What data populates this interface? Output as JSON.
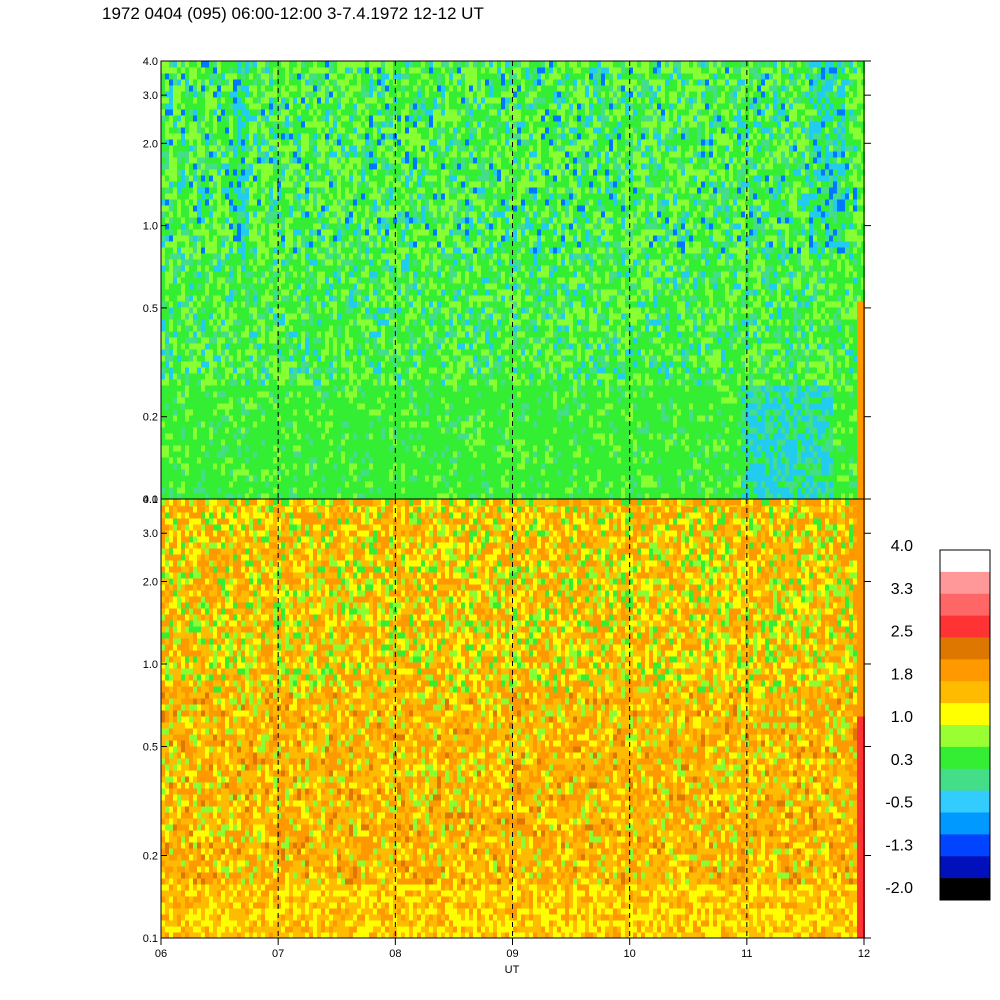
{
  "title": "1972 0404 (095) 06:00-12:00 3-7.4.1972  12-12 UT",
  "chart_data": [
    {
      "type": "heatmap",
      "panel": "top",
      "x": {
        "label": "",
        "range": [
          "06",
          "12"
        ],
        "ticks": [
          "06",
          "07",
          "08",
          "09",
          "10",
          "11",
          "12"
        ]
      },
      "y": {
        "label": "",
        "scale": "log",
        "range": [
          0.1,
          4.0
        ],
        "ticks": [
          "0.1",
          "0.2",
          "0.5",
          "1.0",
          "2.0",
          "3.0",
          "4.0"
        ]
      },
      "dominant_levels": [
        0.3,
        1.0,
        -0.5
      ],
      "hour_markers": [
        "07",
        "08",
        "09",
        "10",
        "11"
      ]
    },
    {
      "type": "heatmap",
      "panel": "bottom",
      "x": {
        "label": "UT",
        "range": [
          "06",
          "12"
        ],
        "ticks": [
          "06",
          "07",
          "08",
          "09",
          "10",
          "11",
          "12"
        ]
      },
      "y": {
        "label": "",
        "scale": "log",
        "range": [
          0.1,
          4.0
        ],
        "ticks": [
          "0.1",
          "0.2",
          "0.5",
          "1.0",
          "2.0",
          "3.0",
          "4.0"
        ]
      },
      "dominant_levels": [
        1.8,
        1.0,
        2.5
      ],
      "hour_markers": [
        "07",
        "08",
        "09",
        "10",
        "11"
      ]
    }
  ],
  "colorbar": {
    "labels": [
      "4.0",
      "3.3",
      "2.5",
      "1.8",
      "1.0",
      "0.3",
      "-0.5",
      "-1.3",
      "-2.0"
    ],
    "colors": [
      "#ffffff",
      "#ff9999",
      "#ff6666",
      "#ff3333",
      "#dd7700",
      "#ff9900",
      "#ffbb00",
      "#ffff00",
      "#99ff33",
      "#33ee33",
      "#44dd88",
      "#33ccff",
      "#0099ff",
      "#0044ff",
      "#0011bb",
      "#000000"
    ]
  },
  "colors": {
    "darkblue": "#0022cc",
    "blue": "#0077ff",
    "cyan": "#22ccee",
    "teal": "#44dd88",
    "green": "#33ee33",
    "lightgreen": "#88ff33",
    "yellow": "#ffff00",
    "amber": "#ffbb00",
    "orange": "#ff9900",
    "darkorange": "#dd7700",
    "red": "#ff3333"
  }
}
